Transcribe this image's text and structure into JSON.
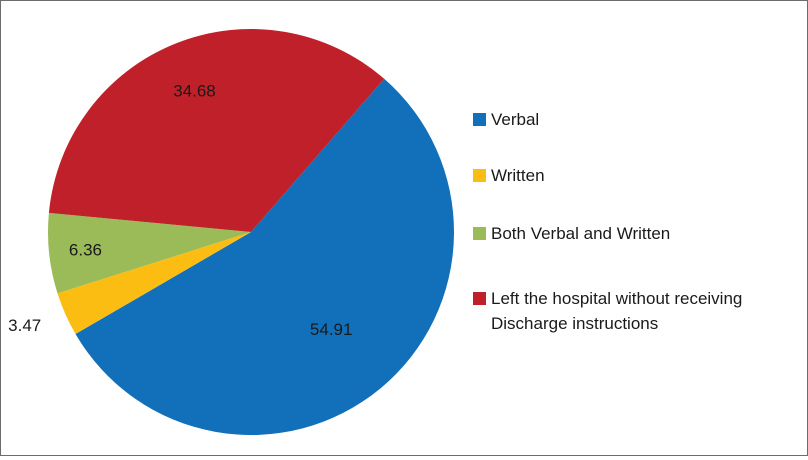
{
  "chart_data": {
    "type": "pie",
    "title": "",
    "slices": [
      {
        "label": "Verbal",
        "value": 54.91,
        "display": "54.91",
        "color": "#1170b9"
      },
      {
        "label": "Written",
        "value": 3.47,
        "display": "3.47",
        "color": "#fcbd12"
      },
      {
        "label": "Both Verbal and Written",
        "value": 6.36,
        "display": "6.36",
        "color": "#9bbb59"
      },
      {
        "label": "Left the hospital without receiving Discharge instructions",
        "label_lines": [
          "Left the hospital without receiving",
          "Discharge instructions"
        ],
        "value": 34.68,
        "display": "34.68",
        "color": "#c0202a"
      }
    ],
    "legend": {
      "placement": "right",
      "items": [
        {
          "lines": [
            "Verbal"
          ],
          "color": "#1170b9"
        },
        {
          "lines": [
            "Written"
          ],
          "color": "#fcbd12"
        },
        {
          "lines": [
            "Both Verbal and Written"
          ],
          "color": "#9bbb59"
        },
        {
          "lines": [
            "Left the hospital without receiving",
            "Discharge instructions"
          ],
          "color": "#c0202a"
        }
      ]
    }
  }
}
